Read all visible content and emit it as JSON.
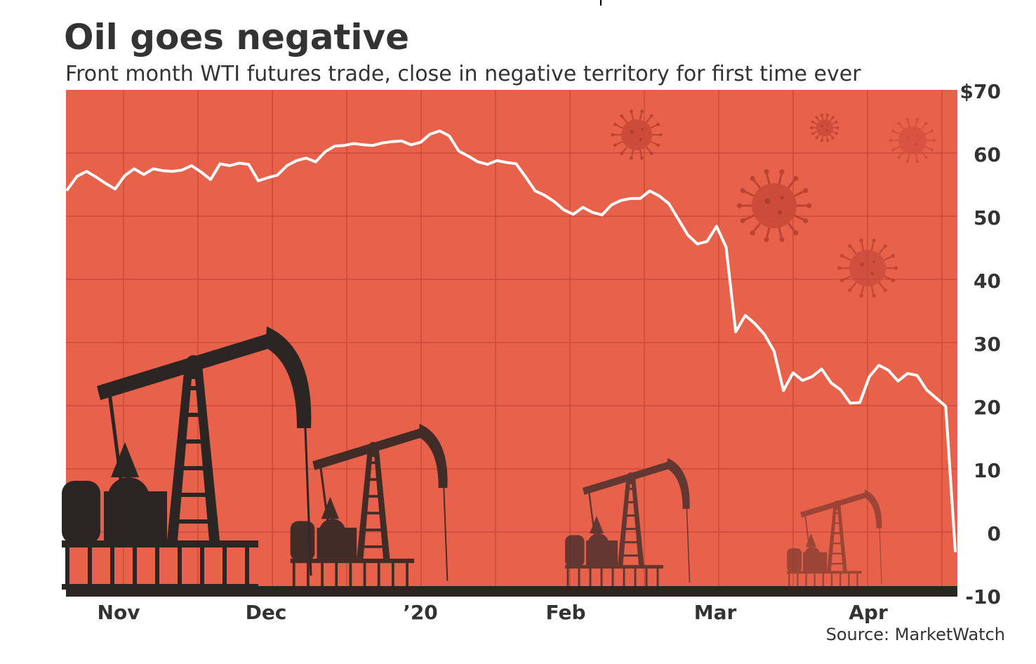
{
  "chart_data": {
    "type": "line",
    "title": "Oil goes negative",
    "subtitle": "Front month WTI futures trade, close in negative territory for first time ever",
    "source": "Source: MarketWatch",
    "x_ticks": [
      "Nov",
      "Dec",
      "’20",
      "Feb",
      "Mar",
      "Apr"
    ],
    "y_ticks": [
      "$70",
      "60",
      "50",
      "40",
      "30",
      "20",
      "10",
      "0",
      "-10"
    ],
    "ylim": [
      -10,
      70
    ],
    "grid": true,
    "series": [
      {
        "values": [
          54.2,
          56.3,
          57.1,
          56.2,
          55.2,
          54.3,
          56.4,
          57.5,
          56.6,
          57.5,
          57.2,
          57.1,
          57.3,
          58.0,
          57.0,
          55.8,
          58.3,
          58.0,
          58.4,
          58.2,
          55.6,
          56.1,
          56.5,
          58.0,
          58.8,
          59.2,
          58.6,
          60.2,
          61.1,
          61.2,
          61.5,
          61.3,
          61.2,
          61.6,
          61.8,
          61.9,
          61.3,
          61.7,
          63.0,
          63.5,
          62.7,
          60.3,
          59.5,
          58.6,
          58.2,
          58.8,
          58.5,
          58.3,
          56.2,
          54.0,
          53.3,
          52.3,
          51.0,
          50.3,
          51.4,
          50.6,
          50.2,
          51.8,
          52.5,
          52.8,
          52.8,
          54.0,
          53.2,
          52.0,
          49.5,
          47.0,
          45.6,
          46.0,
          48.4,
          45.1,
          31.7,
          34.3,
          33.0,
          31.3,
          28.7,
          22.4,
          25.2,
          24.0,
          24.6,
          25.8,
          23.6,
          22.5,
          20.4,
          20.5,
          24.6,
          26.4,
          25.6,
          23.9,
          25.1,
          24.8,
          22.5,
          21.2,
          19.9,
          -3.0
        ],
        "color": "#ffffff"
      }
    ]
  },
  "colors": {
    "background": "#e8614a",
    "line": "#ffffff",
    "grid": "#c24734",
    "derrick": "#2b2524",
    "text": "#333333"
  },
  "decorations": [
    "oil-pump-jack-silhouettes",
    "coronavirus-icons"
  ]
}
